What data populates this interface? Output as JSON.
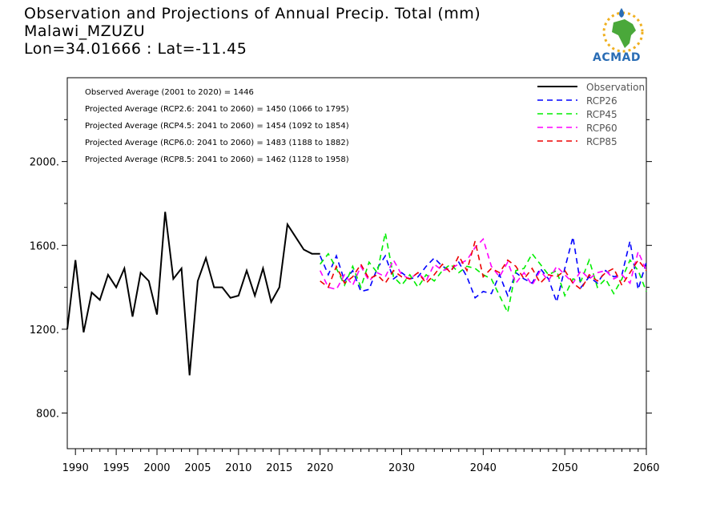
{
  "title": {
    "line1": "Observation and Projections of Annual Precip. Total (mm)",
    "line2": "Malawi_MZUZU",
    "line3": "Lon=34.01666 : Lat=-11.45"
  },
  "logo": {
    "text": "ACMAD"
  },
  "annotations": [
    "Observed Average (2001 to 2020) = 1446",
    "Projected Average (RCP2.6: 2041 to 2060) = 1450 (1066 to 1795)",
    "Projected Average (RCP4.5: 2041 to 2060) = 1454 (1092 to 1854)",
    "Projected Average (RCP6.0: 2041 to 2060) = 1483 (1188 to 1882)",
    "Projected Average (RCP8.5: 2041 to 2060) = 1462 (1128 to 1958)"
  ],
  "colors": {
    "observation": "#000000",
    "rcp26": "#0000ff",
    "rcp45": "#00ee00",
    "rcp60": "#ff00ff",
    "rcp85": "#ee0000"
  },
  "chart_data": {
    "type": "line",
    "xlim": [
      1989,
      2060
    ],
    "ylim": [
      630,
      2400
    ],
    "xticks": [
      1990,
      1995,
      2000,
      2005,
      2010,
      2015,
      2020,
      2030,
      2040,
      2050,
      2060
    ],
    "yticks": [
      800,
      1200,
      1600,
      2000
    ],
    "ytick_labels": [
      "800.",
      "1200.",
      "1600.",
      "2000."
    ],
    "legend": [
      "Observation",
      "RCP26",
      "RCP45",
      "RCP60",
      "RCP85"
    ],
    "legend_position": "top-right",
    "series": [
      {
        "name": "Observation",
        "style": "solid",
        "x": [
          1989,
          1990,
          1991,
          1992,
          1993,
          1994,
          1995,
          1996,
          1997,
          1998,
          1999,
          2000,
          2001,
          2002,
          2003,
          2004,
          2005,
          2006,
          2007,
          2008,
          2009,
          2010,
          2011,
          2012,
          2013,
          2014,
          2015,
          2016,
          2017,
          2018,
          2019,
          2020
        ],
        "values": [
          1200,
          1530,
          1185,
          1375,
          1340,
          1460,
          1400,
          1490,
          1260,
          1470,
          1430,
          1270,
          1760,
          1440,
          1490,
          980,
          1430,
          1540,
          1400,
          1400,
          1350,
          1360,
          1480,
          1360,
          1490,
          1330,
          1400,
          1700,
          1640,
          1580,
          1560,
          1560
        ]
      },
      {
        "name": "RCP26",
        "style": "dashed",
        "x": [
          2020,
          2021,
          2022,
          2023,
          2024,
          2025,
          2026,
          2027,
          2028,
          2029,
          2030,
          2031,
          2032,
          2033,
          2034,
          2035,
          2036,
          2037,
          2038,
          2039,
          2040,
          2041,
          2042,
          2043,
          2044,
          2045,
          2046,
          2047,
          2048,
          2049,
          2050,
          2051,
          2052,
          2053,
          2054,
          2055,
          2056,
          2057,
          2058,
          2059,
          2060
        ],
        "values": [
          1550,
          1460,
          1550,
          1430,
          1480,
          1380,
          1390,
          1490,
          1550,
          1440,
          1470,
          1440,
          1450,
          1500,
          1540,
          1500,
          1480,
          1520,
          1450,
          1350,
          1380,
          1370,
          1460,
          1360,
          1470,
          1440,
          1420,
          1490,
          1440,
          1330,
          1490,
          1640,
          1400,
          1450,
          1420,
          1480,
          1450,
          1460,
          1620,
          1390,
          1520
        ]
      },
      {
        "name": "RCP45",
        "style": "dashed",
        "x": [
          2020,
          2021,
          2022,
          2023,
          2024,
          2025,
          2026,
          2027,
          2028,
          2029,
          2030,
          2031,
          2032,
          2033,
          2034,
          2035,
          2036,
          2037,
          2038,
          2039,
          2040,
          2041,
          2042,
          2043,
          2044,
          2045,
          2046,
          2047,
          2048,
          2049,
          2050,
          2051,
          2052,
          2053,
          2054,
          2055,
          2056,
          2057,
          2058,
          2059,
          2060
        ],
        "values": [
          1510,
          1560,
          1490,
          1410,
          1500,
          1400,
          1520,
          1470,
          1660,
          1450,
          1410,
          1460,
          1400,
          1460,
          1430,
          1480,
          1510,
          1470,
          1500,
          1490,
          1460,
          1440,
          1360,
          1280,
          1480,
          1490,
          1560,
          1510,
          1460,
          1480,
          1360,
          1440,
          1430,
          1530,
          1400,
          1440,
          1370,
          1440,
          1530,
          1480,
          1380
        ]
      },
      {
        "name": "RCP60",
        "style": "dashed",
        "x": [
          2020,
          2021,
          2022,
          2023,
          2024,
          2025,
          2026,
          2027,
          2028,
          2029,
          2030,
          2031,
          2032,
          2033,
          2034,
          2035,
          2036,
          2037,
          2038,
          2039,
          2040,
          2041,
          2042,
          2043,
          2044,
          2045,
          2046,
          2047,
          2048,
          2049,
          2050,
          2051,
          2052,
          2053,
          2054,
          2055,
          2056,
          2057,
          2058,
          2059,
          2060
        ],
        "values": [
          1480,
          1400,
          1390,
          1460,
          1410,
          1500,
          1430,
          1470,
          1450,
          1530,
          1460,
          1440,
          1470,
          1430,
          1510,
          1480,
          1490,
          1510,
          1530,
          1590,
          1630,
          1500,
          1450,
          1520,
          1420,
          1470,
          1410,
          1480,
          1430,
          1500,
          1460,
          1420,
          1480,
          1440,
          1470,
          1480,
          1440,
          1460,
          1420,
          1570,
          1480
        ]
      },
      {
        "name": "RCP85",
        "style": "dashed",
        "x": [
          2020,
          2021,
          2022,
          2023,
          2024,
          2025,
          2026,
          2027,
          2028,
          2029,
          2030,
          2031,
          2032,
          2033,
          2034,
          2035,
          2036,
          2037,
          2038,
          2039,
          2040,
          2041,
          2042,
          2043,
          2044,
          2045,
          2046,
          2047,
          2048,
          2049,
          2050,
          2051,
          2052,
          2053,
          2054,
          2055,
          2056,
          2057,
          2058,
          2059,
          2060
        ],
        "values": [
          1430,
          1400,
          1500,
          1420,
          1450,
          1510,
          1440,
          1460,
          1420,
          1480,
          1450,
          1440,
          1470,
          1420,
          1460,
          1510,
          1470,
          1550,
          1480,
          1620,
          1450,
          1490,
          1470,
          1530,
          1500,
          1440,
          1490,
          1420,
          1460,
          1450,
          1480,
          1420,
          1390,
          1460,
          1430,
          1470,
          1490,
          1410,
          1470,
          1530,
          1480
        ]
      }
    ]
  }
}
